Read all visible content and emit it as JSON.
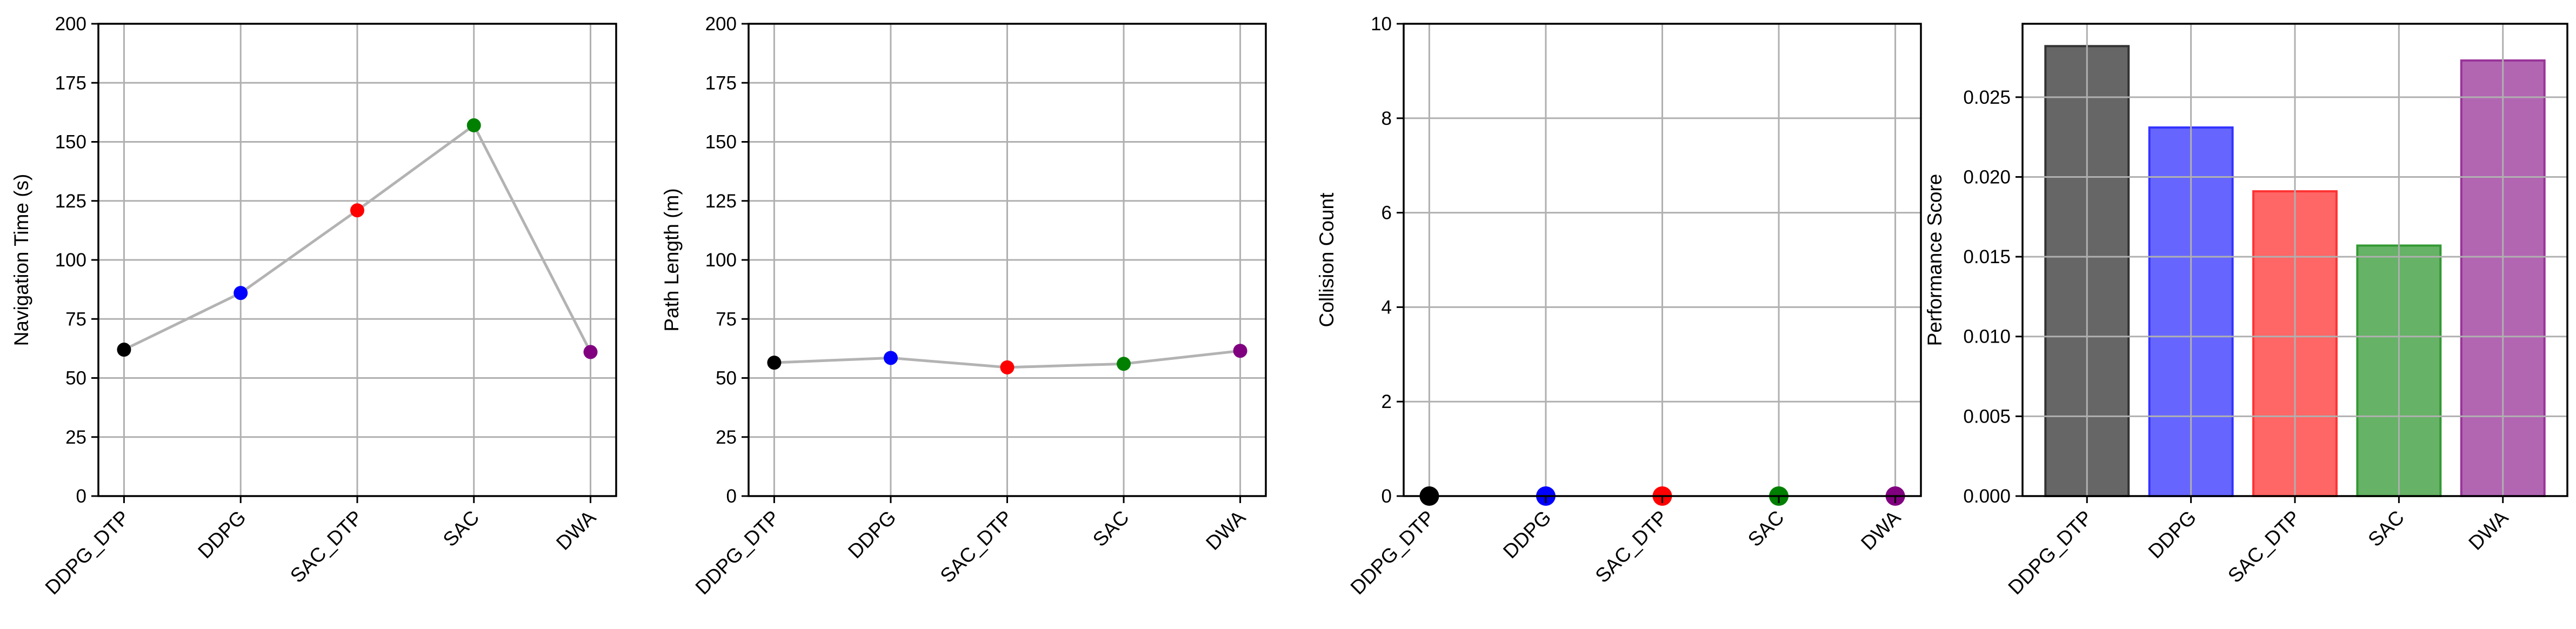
{
  "chart_data": [
    {
      "type": "line",
      "categories": [
        "DDPG_DTP",
        "DDPG",
        "SAC_DTP",
        "SAC",
        "DWA"
      ],
      "values": [
        62,
        86,
        121,
        157,
        61
      ],
      "point_colors": [
        "#000000",
        "#0000ff",
        "#ff0000",
        "#008000",
        "#800080"
      ],
      "line_color": "#b3b3b3",
      "ylabel": "Navigation Time (s)",
      "ylim": [
        0,
        200
      ],
      "yticks": [
        "0",
        "25",
        "50",
        "75",
        "100",
        "125",
        "150",
        "175",
        "200"
      ],
      "grid": true
    },
    {
      "type": "line",
      "categories": [
        "DDPG_DTP",
        "DDPG",
        "SAC_DTP",
        "SAC",
        "DWA"
      ],
      "values": [
        56.5,
        58.5,
        54.5,
        56,
        61.5
      ],
      "point_colors": [
        "#000000",
        "#0000ff",
        "#ff0000",
        "#008000",
        "#800080"
      ],
      "line_color": "#b3b3b3",
      "ylabel": "Path Length (m)",
      "ylim": [
        0,
        200
      ],
      "yticks": [
        "0",
        "25",
        "50",
        "75",
        "100",
        "125",
        "150",
        "175",
        "200"
      ],
      "grid": true
    },
    {
      "type": "scatter",
      "categories": [
        "DDPG_DTP",
        "DDPG",
        "SAC_DTP",
        "SAC",
        "DWA"
      ],
      "values": [
        0,
        0,
        0,
        0,
        0
      ],
      "point_colors": [
        "#000000",
        "#0000ff",
        "#ff0000",
        "#008000",
        "#800080"
      ],
      "ylabel": "Collision Count",
      "ylim": [
        0,
        10
      ],
      "yticks": [
        "0",
        "2",
        "4",
        "6",
        "8",
        "10"
      ],
      "grid": true
    },
    {
      "type": "bar",
      "categories": [
        "DDPG_DTP",
        "DDPG",
        "SAC_DTP",
        "SAC",
        "DWA"
      ],
      "values": [
        0.0282,
        0.0231,
        0.0191,
        0.0157,
        0.0273
      ],
      "bar_colors": [
        "#666666",
        "#6666ff",
        "#ff6666",
        "#66b266",
        "#b266b2"
      ],
      "edge_colors": [
        "#333333",
        "#3333ff",
        "#ff3333",
        "#339933",
        "#993399"
      ],
      "ylabel": "Performance Score",
      "ylim": [
        0,
        0.0296
      ],
      "yticks": [
        "0.000",
        "0.005",
        "0.010",
        "0.015",
        "0.020",
        "0.025"
      ],
      "grid": true
    }
  ]
}
